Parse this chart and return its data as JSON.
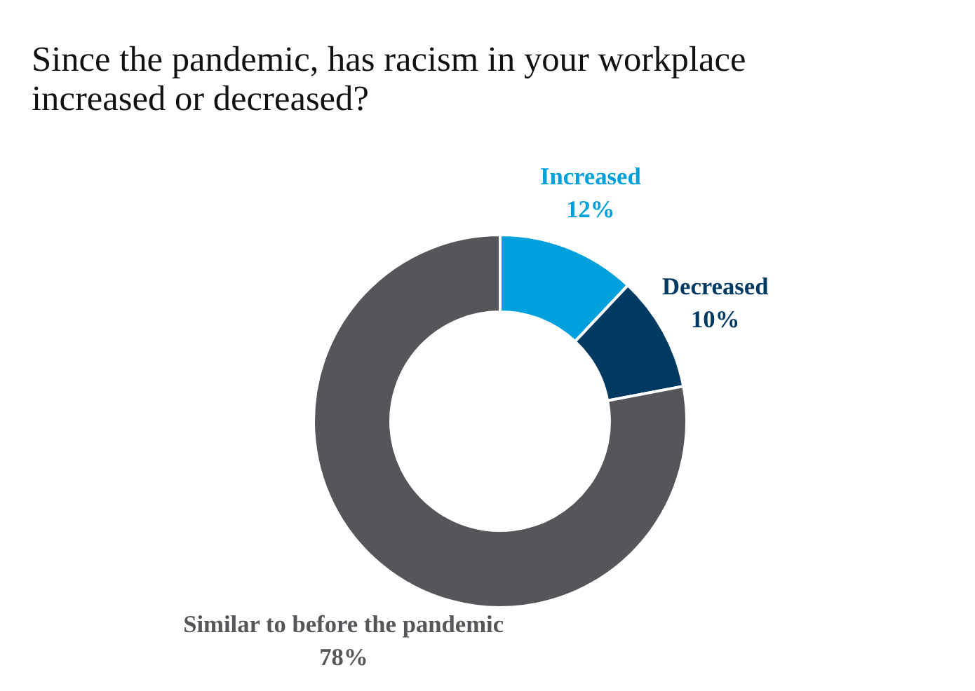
{
  "chart_data": {
    "type": "donut",
    "title": "Since the pandemic, has racism in your workplace\nincreased or decreased?",
    "categories": [
      "Increased",
      "Decreased",
      "Similar to before the pandemic"
    ],
    "values": [
      12,
      10,
      78
    ],
    "value_labels": [
      "12%",
      "10%",
      "78%"
    ],
    "colors": [
      "#00a0dc",
      "#003a63",
      "#55555a"
    ],
    "legend": false
  }
}
